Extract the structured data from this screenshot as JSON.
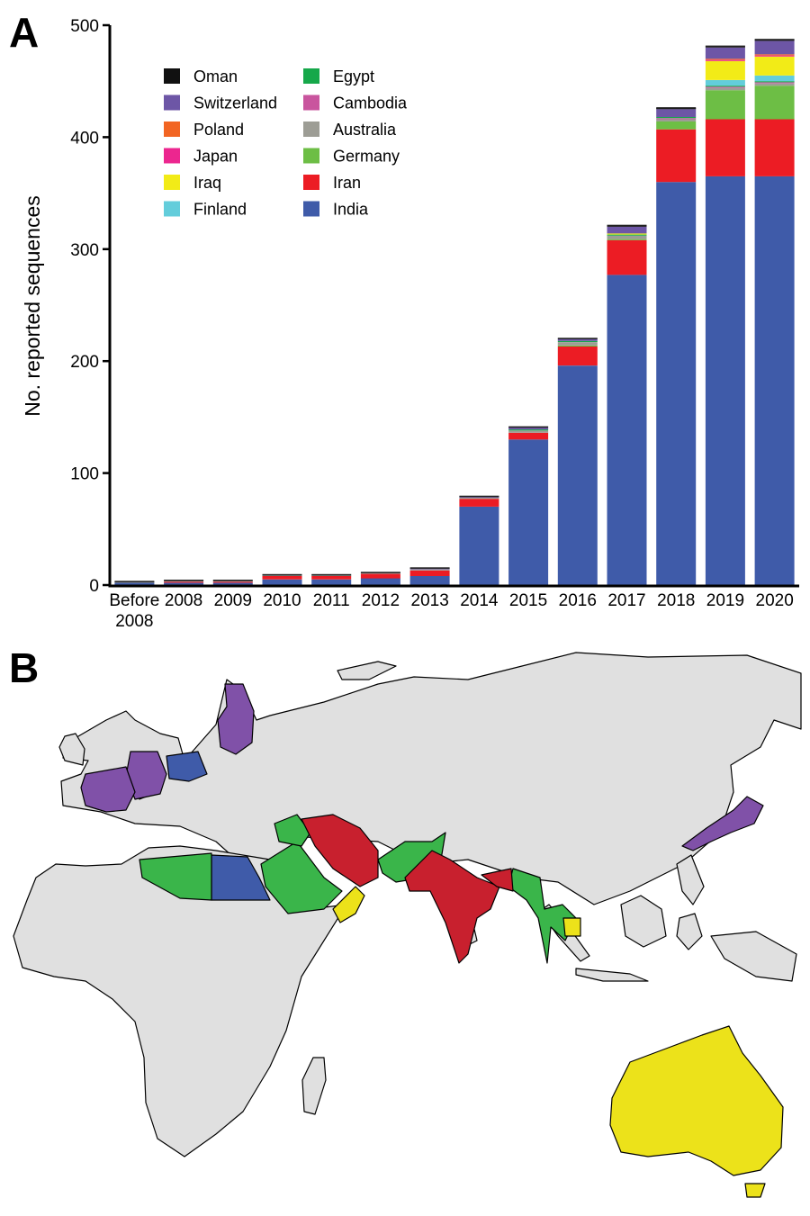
{
  "figure": {
    "panel_a_letter": "A",
    "panel_b_letter": "B"
  },
  "chart_data": {
    "type": "bar",
    "stacked": true,
    "categories": [
      "Before 2008",
      "2008",
      "2009",
      "2010",
      "2011",
      "2012",
      "2013",
      "2014",
      "2015",
      "2016",
      "2017",
      "2018",
      "2019",
      "2020"
    ],
    "ylabel": "No. reported sequences",
    "ylim": [
      0,
      500
    ],
    "yticks": [
      0,
      100,
      200,
      300,
      400,
      500
    ],
    "grid": false,
    "legend_placement": "top-left",
    "series": [
      {
        "name": "India",
        "color": "#3f5ba9",
        "values": [
          2,
          2,
          2,
          5,
          5,
          6,
          8,
          70,
          130,
          196,
          277,
          360,
          365,
          365
        ]
      },
      {
        "name": "Iran",
        "color": "#ec1c24",
        "values": [
          0,
          1,
          1,
          3,
          3,
          4,
          5,
          7,
          6,
          17,
          31,
          47,
          51,
          51
        ]
      },
      {
        "name": "Germany",
        "color": "#6dbe45",
        "values": [
          0,
          0,
          0,
          0,
          0,
          0,
          0,
          0,
          0,
          1,
          1,
          7,
          26,
          30
        ]
      },
      {
        "name": "Australia",
        "color": "#9d9d95",
        "values": [
          1,
          1,
          1,
          1,
          1,
          1,
          1,
          1,
          2,
          3,
          3,
          2,
          2,
          2
        ]
      },
      {
        "name": "Cambodia",
        "color": "#c9559e",
        "values": [
          0,
          0,
          0,
          0,
          0,
          0,
          0,
          0,
          0,
          0,
          0,
          1,
          1,
          1
        ]
      },
      {
        "name": "Egypt",
        "color": "#16a84a",
        "values": [
          0,
          0,
          0,
          0,
          0,
          0,
          0,
          0,
          1,
          1,
          1,
          1,
          1,
          1
        ]
      },
      {
        "name": "Finland",
        "color": "#63cddb",
        "values": [
          0,
          0,
          0,
          0,
          0,
          0,
          0,
          0,
          0,
          0,
          0,
          0,
          5,
          5
        ]
      },
      {
        "name": "Iraq",
        "color": "#f2eb17",
        "values": [
          0,
          0,
          0,
          0,
          0,
          0,
          0,
          0,
          0,
          0,
          1,
          0,
          17,
          17
        ]
      },
      {
        "name": "Japan",
        "color": "#ec268f",
        "values": [
          0,
          0,
          0,
          0,
          0,
          0,
          0,
          0,
          0,
          0,
          0,
          0,
          1,
          1
        ]
      },
      {
        "name": "Poland",
        "color": "#f26522",
        "values": [
          0,
          0,
          0,
          0,
          0,
          0,
          0,
          0,
          0,
          0,
          0,
          0,
          1,
          1
        ]
      },
      {
        "name": "Switzerland",
        "color": "#6d56a6",
        "values": [
          0,
          0,
          0,
          0,
          0,
          0,
          1,
          1,
          2,
          2,
          6,
          7,
          10,
          12
        ]
      },
      {
        "name": "Oman",
        "color": "#111111",
        "values": [
          0,
          0,
          0,
          0,
          0,
          0,
          0,
          0,
          0,
          0,
          1,
          1,
          1,
          1
        ]
      }
    ],
    "legend_order": [
      "Oman",
      "Switzerland",
      "Poland",
      "Japan",
      "Iraq",
      "Finland",
      "Egypt",
      "Cambodia",
      "Australia",
      "Germany",
      "Iran",
      "India"
    ]
  },
  "map_legend_colors": {
    "purple": "#8051a8",
    "blue": "#3f5ba9",
    "green": "#3ab54a",
    "red": "#c8202e",
    "yellow": "#ece21a",
    "gray": "#e0e0e0"
  }
}
